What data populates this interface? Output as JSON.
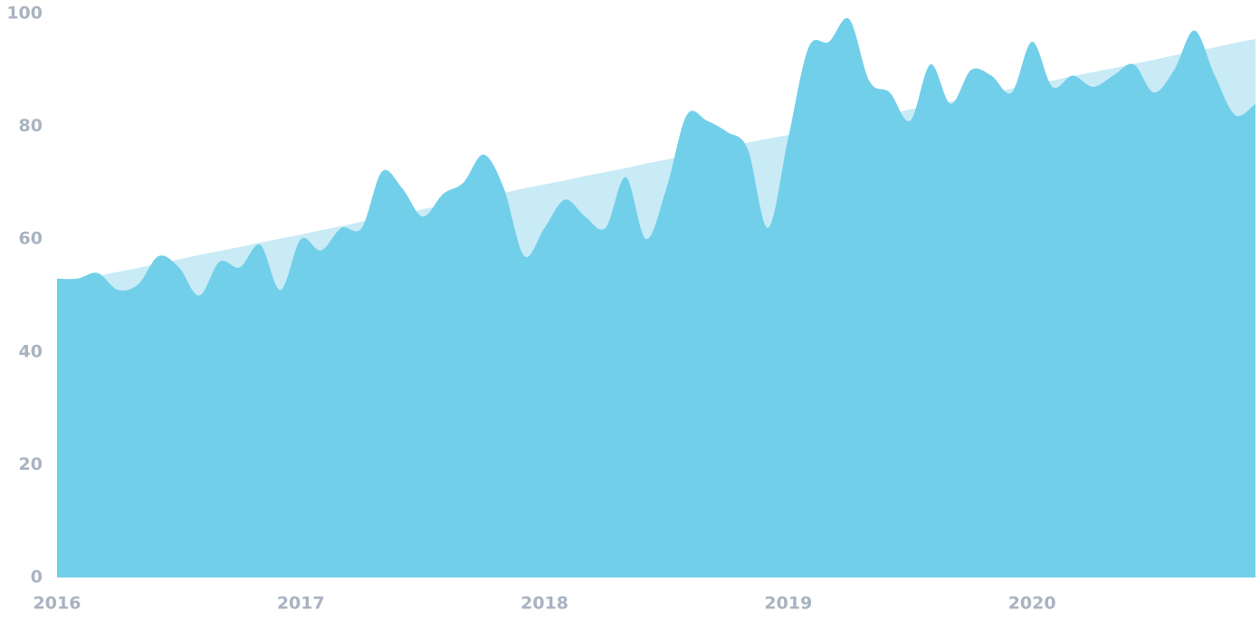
{
  "chart_data": {
    "type": "area",
    "categories": [
      "2016",
      null,
      null,
      null,
      null,
      null,
      null,
      null,
      null,
      null,
      null,
      null,
      "2017",
      null,
      null,
      null,
      null,
      null,
      null,
      null,
      null,
      null,
      null,
      null,
      "2018",
      null,
      null,
      null,
      null,
      null,
      null,
      null,
      null,
      null,
      null,
      null,
      "2019",
      null,
      null,
      null,
      null,
      null,
      null,
      null,
      null,
      null,
      null,
      null,
      "2020",
      null,
      null,
      null,
      null,
      null,
      null,
      null,
      null,
      null,
      null,
      null
    ],
    "series": [
      {
        "color": "#c8ebf6",
        "smooth": false,
        "values": [
          52.0,
          52.7,
          53.5,
          54.2,
          54.9,
          55.7,
          56.4,
          57.2,
          57.9,
          58.6,
          59.4,
          60.1,
          60.8,
          61.6,
          62.3,
          63.1,
          63.8,
          64.5,
          65.3,
          66.0,
          66.7,
          67.5,
          68.2,
          69.0,
          69.7,
          70.4,
          71.2,
          71.9,
          72.6,
          73.4,
          74.1,
          74.9,
          75.6,
          76.3,
          77.1,
          77.8,
          78.5,
          79.3,
          80.0,
          80.8,
          81.5,
          82.2,
          83.0,
          83.7,
          84.4,
          85.2,
          85.9,
          86.7,
          87.4,
          88.1,
          88.9,
          89.6,
          90.3,
          91.1,
          91.8,
          92.6,
          93.3,
          94.0,
          94.8,
          95.5
        ]
      },
      {
        "color": "#72cfea",
        "smooth": true,
        "values": [
          53,
          53,
          54,
          51,
          52,
          57,
          55,
          50,
          56,
          55,
          59,
          51,
          60,
          58,
          62,
          62,
          72,
          69,
          64,
          68,
          70,
          75,
          69,
          57,
          62,
          67,
          64,
          62,
          71,
          60,
          69,
          82,
          81,
          79,
          76,
          62,
          78,
          94,
          95,
          99,
          88,
          86,
          81,
          91,
          84,
          90,
          89,
          86,
          95,
          87,
          89,
          87,
          89,
          91,
          86,
          90,
          97,
          89,
          82,
          84
        ]
      }
    ],
    "ylim": [
      0,
      100
    ],
    "yticks": [
      0,
      20,
      40,
      60,
      80,
      100
    ],
    "grid": false
  }
}
